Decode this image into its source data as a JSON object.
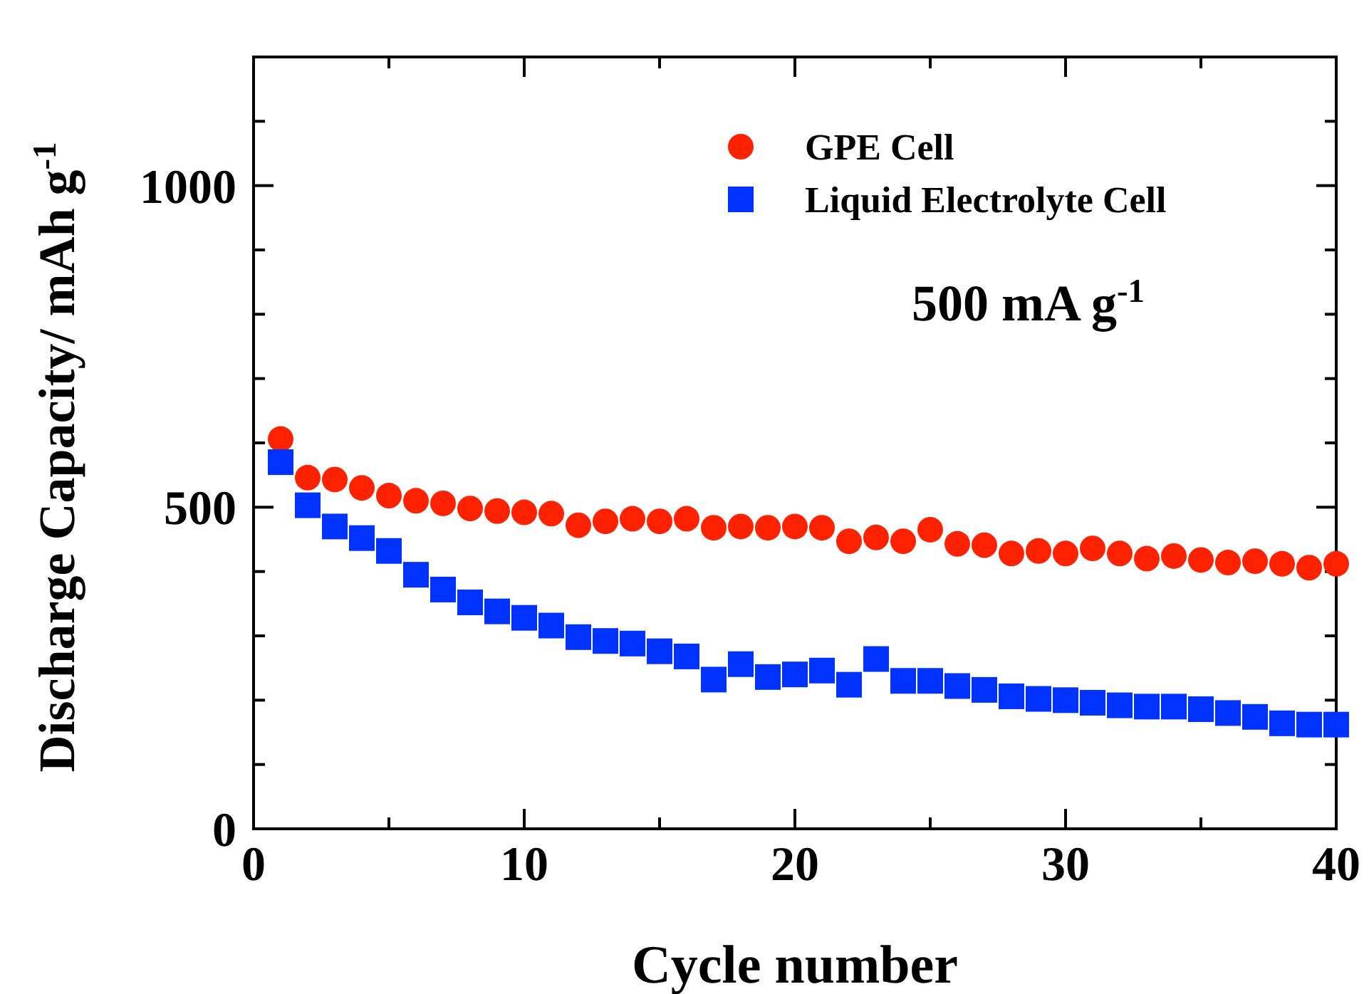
{
  "chart_data": {
    "type": "scatter",
    "xlabel": "Cycle number",
    "ylabel": "Discharge Capacity/ mAh g$^{-1}$",
    "x": [
      1,
      2,
      3,
      4,
      5,
      6,
      7,
      8,
      9,
      10,
      11,
      12,
      13,
      14,
      15,
      16,
      17,
      18,
      19,
      20,
      21,
      22,
      23,
      24,
      25,
      26,
      27,
      28,
      29,
      30,
      31,
      32,
      33,
      34,
      35,
      36,
      37,
      38,
      39,
      40
    ],
    "xlim": [
      0,
      40
    ],
    "xticks": [
      0,
      {
        "value": 5,
        "label": null
      },
      10,
      {
        "value": 15,
        "label": null
      },
      20,
      {
        "value": 25,
        "label": null
      },
      30,
      {
        "value": 35,
        "label": null
      },
      40
    ],
    "ylim": [
      0,
      1200
    ],
    "yticks": [
      0,
      {
        "value": 100,
        "label": null
      },
      {
        "value": 200,
        "label": null
      },
      {
        "value": 300,
        "label": null
      },
      {
        "value": 400,
        "label": null
      },
      500,
      {
        "value": 600,
        "label": null
      },
      {
        "value": 700,
        "label": null
      },
      {
        "value": 800,
        "label": null
      },
      {
        "value": 900,
        "label": null
      },
      1000,
      {
        "value": 1100,
        "label": null
      }
    ],
    "series": [
      {
        "name": "GPE Cell",
        "color": "#ff2200",
        "marker": "circle",
        "values": [
          606,
          546,
          543,
          530,
          518,
          510,
          506,
          498,
          494,
          492,
          490,
          472,
          478,
          482,
          478,
          482,
          468,
          470,
          468,
          470,
          468,
          447,
          453,
          447,
          465,
          443,
          441,
          428,
          432,
          428,
          436,
          428,
          420,
          424,
          418,
          414,
          416,
          412,
          406,
          412
        ]
      },
      {
        "name": "Liquid Electrolyte Cell",
        "color": "#0033ff",
        "marker": "square",
        "values": [
          570,
          503,
          470,
          452,
          432,
          395,
          372,
          352,
          338,
          328,
          316,
          298,
          292,
          288,
          276,
          268,
          232,
          256,
          236,
          240,
          246,
          224,
          264,
          230,
          230,
          222,
          216,
          206,
          202,
          200,
          196,
          192,
          190,
          190,
          186,
          180,
          174,
          164,
          162,
          162
        ]
      }
    ],
    "annotations": [
      "500 mA g$^{-1}$"
    ],
    "legend": "top right",
    "grid": false
  }
}
